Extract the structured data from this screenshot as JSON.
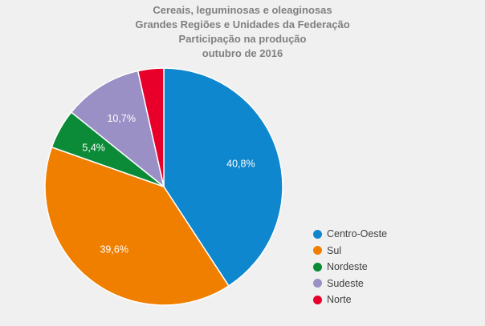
{
  "chart_data": {
    "type": "pie",
    "title_lines": [
      "Cereais, leguminosas e oleaginosas",
      "Grandes Regiões e Unidades da Federação",
      "Participação na produção",
      "outubro de 2016"
    ],
    "slices": [
      {
        "label": "Centro-Oeste",
        "value": 40.8,
        "display": "40,8%",
        "color": "#0f87ce"
      },
      {
        "label": "Sul",
        "value": 39.6,
        "display": "39,6%",
        "color": "#f07f00"
      },
      {
        "label": "Nordeste",
        "value": 5.4,
        "display": "5,4%",
        "color": "#0b8a37"
      },
      {
        "label": "Sudeste",
        "value": 10.7,
        "display": "10,7%",
        "color": "#9a90c6"
      },
      {
        "label": "Norte",
        "value": 3.5,
        "display": "",
        "color": "#e8002a"
      }
    ],
    "start_angle": "12 o'clock",
    "direction": "clockwise",
    "legend_position": "right"
  }
}
